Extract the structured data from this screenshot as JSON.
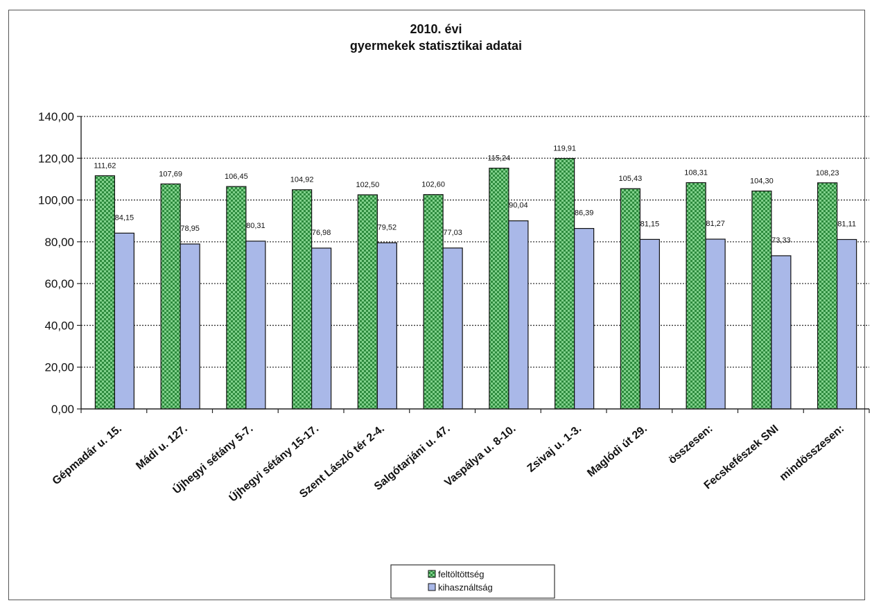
{
  "chart_data": {
    "type": "bar",
    "title_lines": [
      "2010. évi",
      "gyermekek statisztikai adatai"
    ],
    "categories": [
      "Gépmadár u. 15.",
      "Mádi u. 127.",
      "Újhegyi sétány 5-7.",
      "Újhegyi sétány 15-17.",
      "Szent László tér 2-4.",
      "Salgótarjáni u. 47.",
      "Vaspálya u. 8-10.",
      "Zsivaj u. 1-3.",
      "Maglódi út 29.",
      "összesen:",
      "Fecskefészek SNI",
      "mindösszesen:"
    ],
    "series": [
      {
        "name": "feltöltöttség",
        "color": "#2e8b3e",
        "values": [
          111.62,
          107.69,
          106.45,
          104.92,
          102.5,
          102.6,
          115.24,
          119.91,
          105.43,
          108.31,
          104.3,
          108.23
        ],
        "labels": [
          "111,62",
          "107,69",
          "106,45",
          "104,92",
          "102,50",
          "102,60",
          "115,24",
          "119,91",
          "105,43",
          "108,31",
          "104,30",
          "108,23"
        ]
      },
      {
        "name": "kihasználtság",
        "color": "#a9b8e8",
        "values": [
          84.15,
          78.95,
          80.31,
          76.98,
          79.52,
          77.03,
          90.04,
          86.39,
          81.15,
          81.27,
          73.33,
          81.11
        ],
        "labels": [
          "84,15",
          "78,95",
          "80,31",
          "76,98",
          "79,52",
          "77,03",
          "90,04",
          "86,39",
          "81,15",
          "81,27",
          "73,33",
          "81,11"
        ]
      }
    ],
    "ylim": [
      0,
      140
    ],
    "yticks": [
      0,
      20,
      40,
      60,
      80,
      100,
      120,
      140
    ],
    "ytick_labels": [
      "0,00",
      "20,00",
      "40,00",
      "60,00",
      "80,00",
      "100,00",
      "120,00",
      "140,00"
    ],
    "grid": true,
    "legend_position": "bottom-center",
    "legend_labels": [
      "feltöltöttség",
      "kihasználtság"
    ]
  }
}
